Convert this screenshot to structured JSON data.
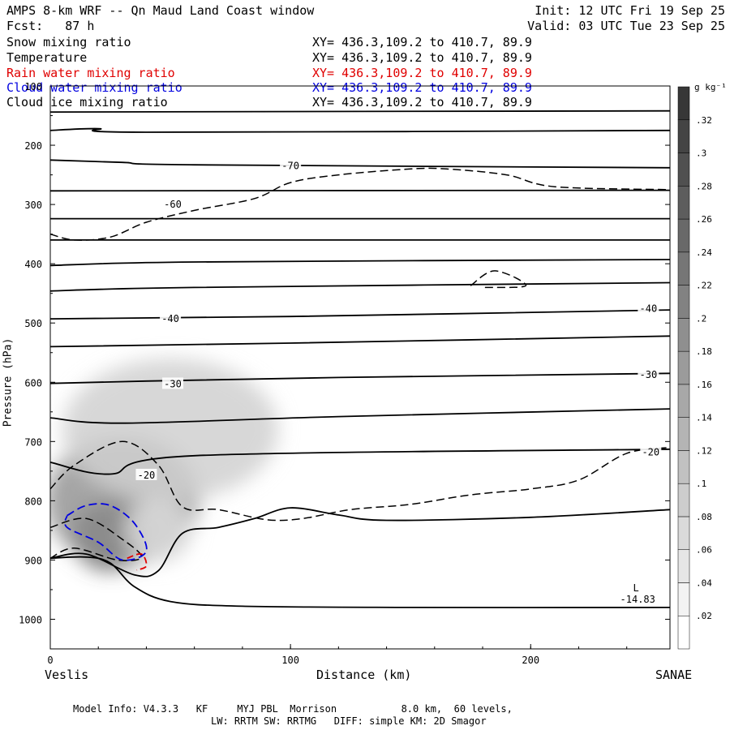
{
  "header": {
    "title": "AMPS 8-km WRF -- Qn Maud Land Coast window",
    "init": "Init: 12 UTC Fri 19 Sep 25",
    "forecast": "Fcst:   87 h",
    "valid": "Valid: 03 UTC Tue 23 Sep 25"
  },
  "fields": [
    {
      "name": "Snow mixing ratio",
      "xy": "XY= 436.3,109.2 to 410.7, 89.9",
      "color": "#000000"
    },
    {
      "name": "Temperature",
      "xy": "XY= 436.3,109.2 to 410.7, 89.9",
      "color": "#000000"
    },
    {
      "name": "Rain water mixing ratio",
      "xy": "XY= 436.3,109.2 to 410.7, 89.9",
      "color": "#e00000"
    },
    {
      "name": "Cloud water mixing ratio",
      "xy": "XY= 436.3,109.2 to 410.7, 89.9",
      "color": "#0000e0"
    },
    {
      "name": "Cloud ice mixing ratio",
      "xy": "XY= 436.3,109.2 to 410.7, 89.9",
      "color": "#000000"
    }
  ],
  "footer": {
    "line1": "Model Info: V4.3.3   KF     MYJ PBL  Morrison           8.0 km,  60 levels,",
    "line2": "LW: RRTM SW: RRTMG   DIFF: simple KM: 2D Smagor"
  },
  "chart_data": {
    "type": "contour cross-section",
    "xlabel": "Distance (km)",
    "ylabel": "Pressure (hPa)",
    "xlim": [
      0,
      258
    ],
    "ylim": [
      1050,
      100
    ],
    "x_ticks": [
      0,
      100,
      200
    ],
    "y_ticks": [
      100,
      200,
      300,
      400,
      500,
      600,
      700,
      800,
      900,
      1000
    ],
    "left_endpoint": "Veslis",
    "right_endpoint": "SANAE",
    "colorbar": {
      "title": "g kg⁻¹",
      "levels": [
        ".02",
        ".04",
        ".06",
        ".08",
        ".1",
        ".12",
        ".14",
        ".16",
        ".18",
        ".2",
        ".22",
        ".24",
        ".26",
        ".28",
        ".3",
        ".32"
      ]
    },
    "low_marker": {
      "label": "L",
      "value": "-14.83",
      "x": 244,
      "p": 975
    },
    "temperature_labels": [
      {
        "text": "-70",
        "x": 100,
        "p": 235
      },
      {
        "text": "-60",
        "x": 51,
        "p": 300
      },
      {
        "text": "-40",
        "x": 50,
        "p": 493
      },
      {
        "text": "-40",
        "x": 249,
        "p": 476
      },
      {
        "text": "-30",
        "x": 51,
        "p": 603
      },
      {
        "text": "-30",
        "x": 249,
        "p": 587
      },
      {
        "text": "-20",
        "x": 40,
        "p": 757
      },
      {
        "text": "-20",
        "x": 250,
        "p": 718
      }
    ],
    "isotherms": [
      [
        [
          0,
          144
        ],
        [
          258,
          142
        ]
      ],
      [
        [
          0,
          175
        ],
        [
          20,
          172
        ],
        [
          40,
          178
        ],
        [
          258,
          175
        ]
      ],
      [
        [
          0,
          225
        ],
        [
          30,
          229
        ],
        [
          60,
          233
        ],
        [
          258,
          238
        ]
      ],
      [
        [
          0,
          277
        ],
        [
          258,
          276
        ]
      ],
      [
        [
          0,
          324
        ],
        [
          258,
          324
        ]
      ],
      [
        [
          0,
          360
        ],
        [
          258,
          360
        ]
      ],
      [
        [
          0,
          403
        ],
        [
          60,
          397
        ],
        [
          258,
          393
        ]
      ],
      [
        [
          0,
          446
        ],
        [
          60,
          440
        ],
        [
          258,
          432
        ]
      ],
      [
        [
          0,
          493
        ],
        [
          100,
          489
        ],
        [
          258,
          478
        ]
      ],
      [
        [
          0,
          540
        ],
        [
          100,
          534
        ],
        [
          258,
          522
        ]
      ],
      [
        [
          0,
          602
        ],
        [
          40,
          598
        ],
        [
          120,
          592
        ],
        [
          258,
          585
        ]
      ],
      [
        [
          0,
          660
        ],
        [
          30,
          669
        ],
        [
          120,
          658
        ],
        [
          258,
          645
        ]
      ],
      [
        [
          0,
          735
        ],
        [
          25,
          755
        ],
        [
          60,
          724
        ],
        [
          258,
          713
        ]
      ],
      [
        [
          0,
          897
        ],
        [
          15,
          890
        ],
        [
          35,
          925
        ],
        [
          45,
          918
        ],
        [
          55,
          855
        ],
        [
          70,
          845
        ],
        [
          85,
          830
        ],
        [
          100,
          812
        ],
        [
          120,
          824
        ],
        [
          140,
          833
        ],
        [
          200,
          828
        ],
        [
          258,
          815
        ]
      ],
      [
        [
          0,
          897
        ],
        [
          15,
          895
        ],
        [
          25,
          905
        ],
        [
          35,
          945
        ],
        [
          50,
          970
        ],
        [
          80,
          978
        ],
        [
          150,
          980
        ],
        [
          258,
          980
        ]
      ]
    ],
    "dashed_contours": [
      [
        [
          0,
          350
        ],
        [
          10,
          360
        ],
        [
          25,
          355
        ],
        [
          40,
          330
        ],
        [
          60,
          310
        ],
        [
          85,
          290
        ],
        [
          100,
          263
        ],
        [
          120,
          250
        ],
        [
          150,
          240
        ],
        [
          165,
          240
        ],
        [
          190,
          250
        ],
        [
          210,
          270
        ],
        [
          258,
          275
        ]
      ],
      [
        [
          175,
          437
        ],
        [
          185,
          412
        ],
        [
          198,
          437
        ],
        [
          180,
          440
        ]
      ],
      [
        [
          0,
          780
        ],
        [
          10,
          740
        ],
        [
          30,
          700
        ],
        [
          45,
          740
        ],
        [
          55,
          810
        ],
        [
          70,
          815
        ],
        [
          90,
          832
        ],
        [
          105,
          830
        ],
        [
          125,
          815
        ],
        [
          150,
          806
        ],
        [
          175,
          790
        ],
        [
          200,
          780
        ],
        [
          220,
          765
        ],
        [
          240,
          720
        ],
        [
          258,
          710
        ]
      ],
      [
        [
          0,
          845
        ],
        [
          15,
          830
        ],
        [
          30,
          865
        ],
        [
          38,
          895
        ],
        [
          28,
          900
        ],
        [
          10,
          880
        ],
        [
          0,
          897
        ]
      ]
    ],
    "cloud_water": [
      [
        [
          7,
          825
        ],
        [
          15,
          808
        ],
        [
          25,
          808
        ],
        [
          35,
          838
        ],
        [
          40,
          885
        ],
        [
          30,
          900
        ],
        [
          20,
          870
        ],
        [
          7,
          845
        ],
        [
          7,
          825
        ]
      ]
    ],
    "rain_water": [
      [
        [
          32,
          897
        ],
        [
          38,
          890
        ],
        [
          40,
          910
        ],
        [
          36,
          917
        ]
      ]
    ],
    "shading_blobs": [
      {
        "x": 25,
        "p": 860,
        "rx": 16,
        "rp": 58,
        "intensity": 0.32
      },
      {
        "x": 30,
        "p": 800,
        "rx": 32,
        "rp": 110,
        "intensity": 0.18
      },
      {
        "x": 50,
        "p": 680,
        "rx": 45,
        "rp": 120,
        "intensity": 0.08
      },
      {
        "x": 45,
        "p": 850,
        "rx": 14,
        "rp": 55,
        "intensity": 0.06
      }
    ]
  }
}
